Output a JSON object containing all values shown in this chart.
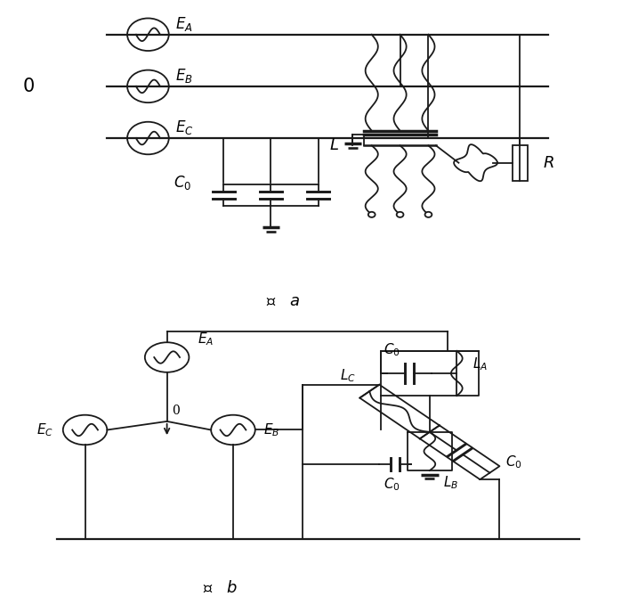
{
  "bg": "#ffffff",
  "lc": "#1a1a1a",
  "lw": 1.3,
  "fw": 7.08,
  "fh": 6.79,
  "fig_a_label": "图   $a$",
  "fig_b_label": "图   $b$",
  "zero": "0"
}
